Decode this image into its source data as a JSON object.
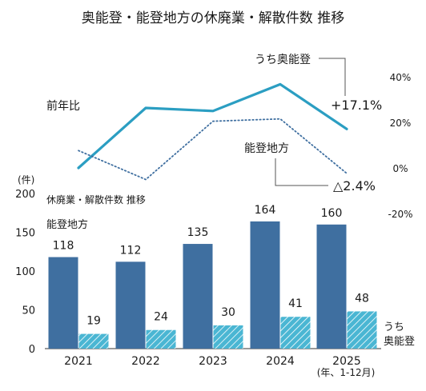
{
  "chart_data": {
    "type": "bar+line",
    "title": "奥能登・能登地方の休廃業・解散件数 推移",
    "categories": [
      "2021",
      "2022",
      "2023",
      "2024",
      "2025"
    ],
    "x_note": "(年、1-12月)",
    "bar_axis": {
      "unit_label": "(件)",
      "ylim": [
        0,
        200
      ],
      "ticks": [
        "0",
        "50",
        "100",
        "150",
        "200"
      ]
    },
    "bar_section_label": "休廃業・解散件数  推移",
    "bar_series": [
      {
        "name": "能登地方",
        "values": [
          118,
          112,
          135,
          164,
          160
        ],
        "color": "#3f6fa0",
        "pattern": "solid"
      },
      {
        "name": "うち\n奥能登",
        "values": [
          19,
          24,
          30,
          41,
          48
        ],
        "color": "#4ab6d3",
        "pattern": "hatched"
      }
    ],
    "line_section_label": "前年比",
    "line_axis": {
      "ylim": [
        -20,
        40
      ],
      "ticks": [
        "40%",
        "20%",
        "0%",
        "-20%"
      ]
    },
    "line_series": [
      {
        "name": "うち奥能登",
        "values": [
          0.0,
          26.3,
          25.0,
          36.7,
          17.1
        ],
        "color": "#2b9ec2",
        "style": "solid",
        "end_label": "+17.1%"
      },
      {
        "name": "能登地方",
        "values": [
          7.6,
          -5.1,
          20.5,
          21.5,
          -2.4
        ],
        "color": "#3f6fa0",
        "style": "dotted",
        "end_label": "△2.4%"
      }
    ],
    "grid": false
  }
}
